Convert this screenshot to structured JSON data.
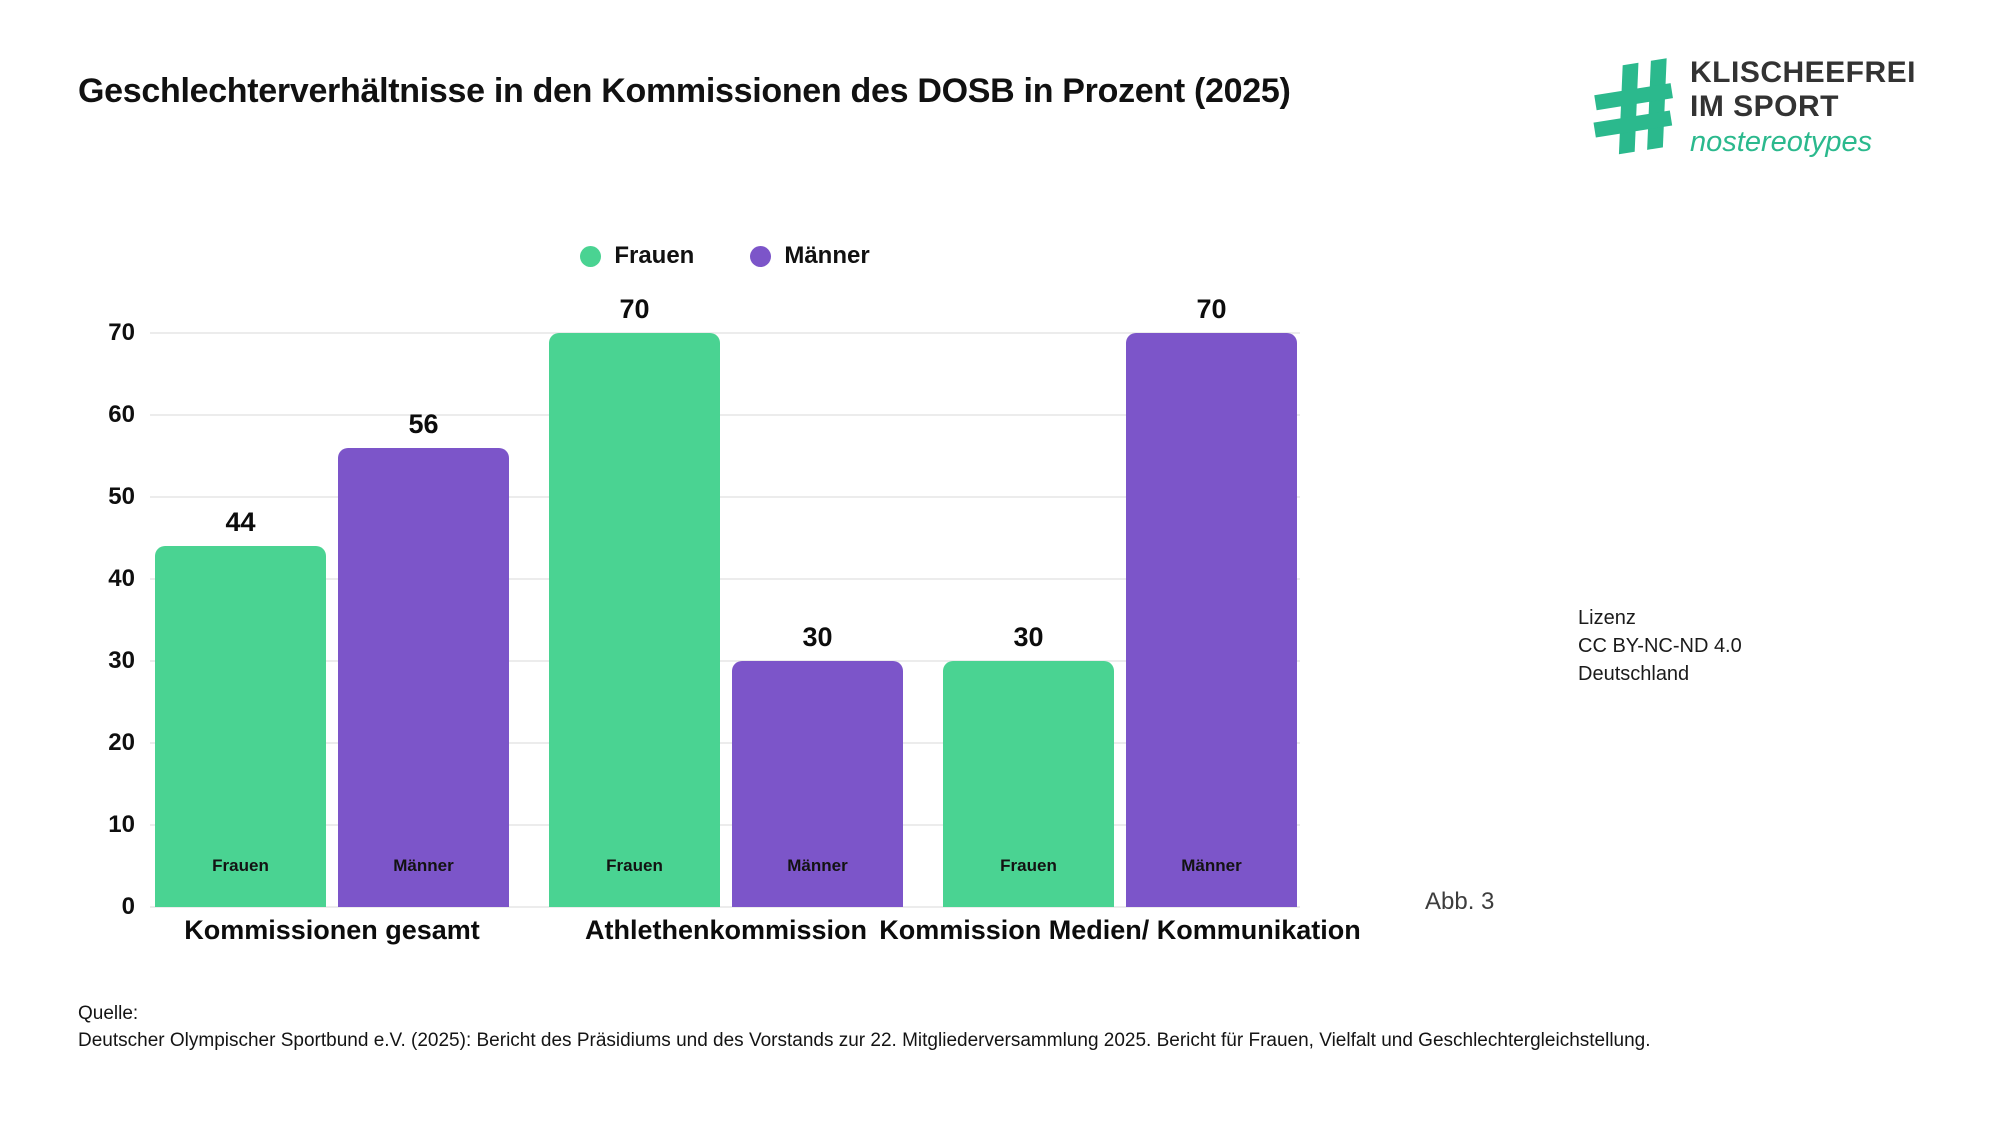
{
  "logo": {
    "line1": "KLISCHEEFREI",
    "line2": "IM SPORT",
    "tagline": "nostereotypes",
    "green": "#2BB98D",
    "dark": "#333333"
  },
  "chart_data": {
    "type": "bar",
    "title": "Geschlechterverhältnisse in den Kommissionen des DOSB in Prozent (2025)",
    "categories": [
      "Kommissionen gesamt",
      "Athlethenkommission",
      "Kommission Medien/ Kommunikation"
    ],
    "series": [
      {
        "name": "Frauen",
        "color": "#4AD392",
        "values": [
          44,
          70,
          30
        ]
      },
      {
        "name": "Männer",
        "color": "#7C55C9",
        "values": [
          56,
          30,
          70
        ]
      }
    ],
    "xlabel": "",
    "ylabel": "",
    "ylim": [
      0,
      70
    ],
    "yticks": [
      0,
      10,
      20,
      30,
      40,
      50,
      60,
      70
    ],
    "grid": true,
    "legend_position": "top-center",
    "bar_value_labels": true,
    "bar_inner_labels": true
  },
  "annotations": {
    "figure_label": "Abb. 3",
    "license_lines": [
      "Lizenz",
      "CC BY-NC-ND 4.0",
      "Deutschland"
    ]
  },
  "source": {
    "label": "Quelle:",
    "text": "Deutscher Olympischer Sportbund e.V. (2025): Bericht des Präsidiums und des Vorstands zur 22. Mitgliederversammlung 2025. Bericht für Frauen, Vielfalt und Geschlechtergleichstellung."
  }
}
